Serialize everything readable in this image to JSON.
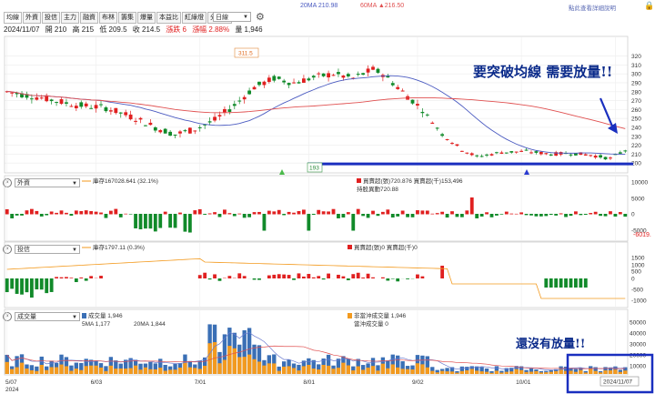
{
  "toolbar": {
    "tabs": [
      "均線",
      "外資",
      "投信",
      "主力",
      "融資",
      "布林",
      "籌集",
      "爆量",
      "本益比",
      "紅綠燈",
      "分價圖"
    ],
    "interval": "日線"
  },
  "top_legend": {
    "ma20": "20MA 210.98",
    "ma60": "60MA ▲216.50",
    "link": "點此查看詳細說明"
  },
  "stats": {
    "date": "2024/11/07",
    "open": "開 210",
    "high": "高 215",
    "low": "低 209.5",
    "close": "收 214.5",
    "change": "漲跌 6",
    "pct": "漲幅 2.88%",
    "vol": "量 1,946"
  },
  "annotations": {
    "main": "要突破均線 需要放量!!",
    "volume": "還沒有放量!!"
  },
  "panels": {
    "foreign": {
      "dropdown": "外資",
      "legend1": "庫存167028.641 (32.1%)",
      "legend2": "買賣超(張)720.876 買賣超(千)153,496",
      "legend3": "持股異動720.88",
      "min_label": "-6019."
    },
    "trust": {
      "dropdown": "投信",
      "legend1": "庫存1797.11 (0.3%)",
      "legend2": "買賣超(張)0 買賣超(千)0"
    },
    "volume": {
      "dropdown": "成交量",
      "legend1": "成交量 1,946",
      "legend2": "5MA 1,177",
      "legend3": "20MA 1,844",
      "legend4": "非當沖成交量 1,946",
      "legend5": "當沖成交量 0"
    }
  },
  "chart_data": {
    "type": "candlestick",
    "price_axis": [
      320,
      310,
      300,
      290,
      280,
      270,
      260,
      250,
      240,
      230,
      220,
      210,
      200
    ],
    "ylim": [
      193,
      340
    ],
    "markers": {
      "high": "311.5",
      "low": "193"
    },
    "foreign_axis": [
      "10000",
      "5000",
      "0",
      "-5000"
    ],
    "trust_axis": [
      "1500",
      "1000",
      "500",
      "0",
      "-500",
      "-1000"
    ],
    "volume_axis": [
      "50000",
      "40000",
      "30000",
      "20000",
      "10000"
    ],
    "x_ticks": [
      "5/07",
      "6/03",
      "7/01",
      "8/01",
      "9/02",
      "10/01",
      "11/"
    ],
    "x_ticks_year": "2024",
    "cursor_label": "2024/11/07",
    "colors": {
      "up": "#e02020",
      "down": "#118a2a",
      "ma20": "#4a5ac0",
      "ma60": "#e05050",
      "vol": "#3a6fb5",
      "volnd": "#f39a1e",
      "bluebar": "#1a2fbf"
    }
  }
}
